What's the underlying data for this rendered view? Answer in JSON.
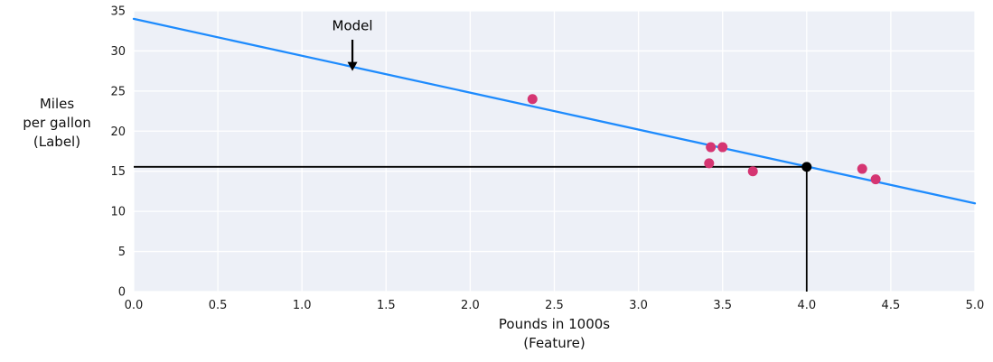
{
  "figure": {
    "background": "#ffffff",
    "plot_background": "#edf0f7",
    "grid_color": "#ffffff",
    "tick_color": "#1a1a1a"
  },
  "chart_data": {
    "type": "scatter",
    "title": "",
    "xlabel": "Pounds in 1000s\n(Feature)",
    "ylabel": "Miles\nper gallon\n(Label)",
    "xlim": [
      0.0,
      5.0
    ],
    "ylim": [
      0,
      35
    ],
    "grid": true,
    "legend": "none",
    "xticks": [
      "0.0",
      "0.5",
      "1.0",
      "1.5",
      "2.0",
      "2.5",
      "3.0",
      "3.5",
      "4.0",
      "4.5",
      "5.0"
    ],
    "yticks": [
      "0",
      "5",
      "10",
      "15",
      "20",
      "25",
      "30",
      "35"
    ],
    "points": {
      "name": "observed data",
      "color": "#d53572",
      "data": [
        [
          2.37,
          24.0
        ],
        [
          3.43,
          18.0
        ],
        [
          3.5,
          18.0
        ],
        [
          3.42,
          16.0
        ],
        [
          3.68,
          15.0
        ],
        [
          4.33,
          15.3
        ],
        [
          4.41,
          14.0
        ]
      ]
    },
    "model_line": {
      "name": "Model",
      "color": "#1e8bfd",
      "x": [
        0.0,
        5.0
      ],
      "y": [
        34.0,
        11.0
      ]
    },
    "annotation": {
      "label": "Model",
      "color": "#000000",
      "x": 1.3,
      "label_baseline_y": 32.6,
      "arrow_from_y": 31.4,
      "arrow_tip_y": 27.5
    },
    "prediction": {
      "name": "prediction at x=4.0",
      "color": "#000000",
      "x": 4.0,
      "y": 15.55
    }
  }
}
